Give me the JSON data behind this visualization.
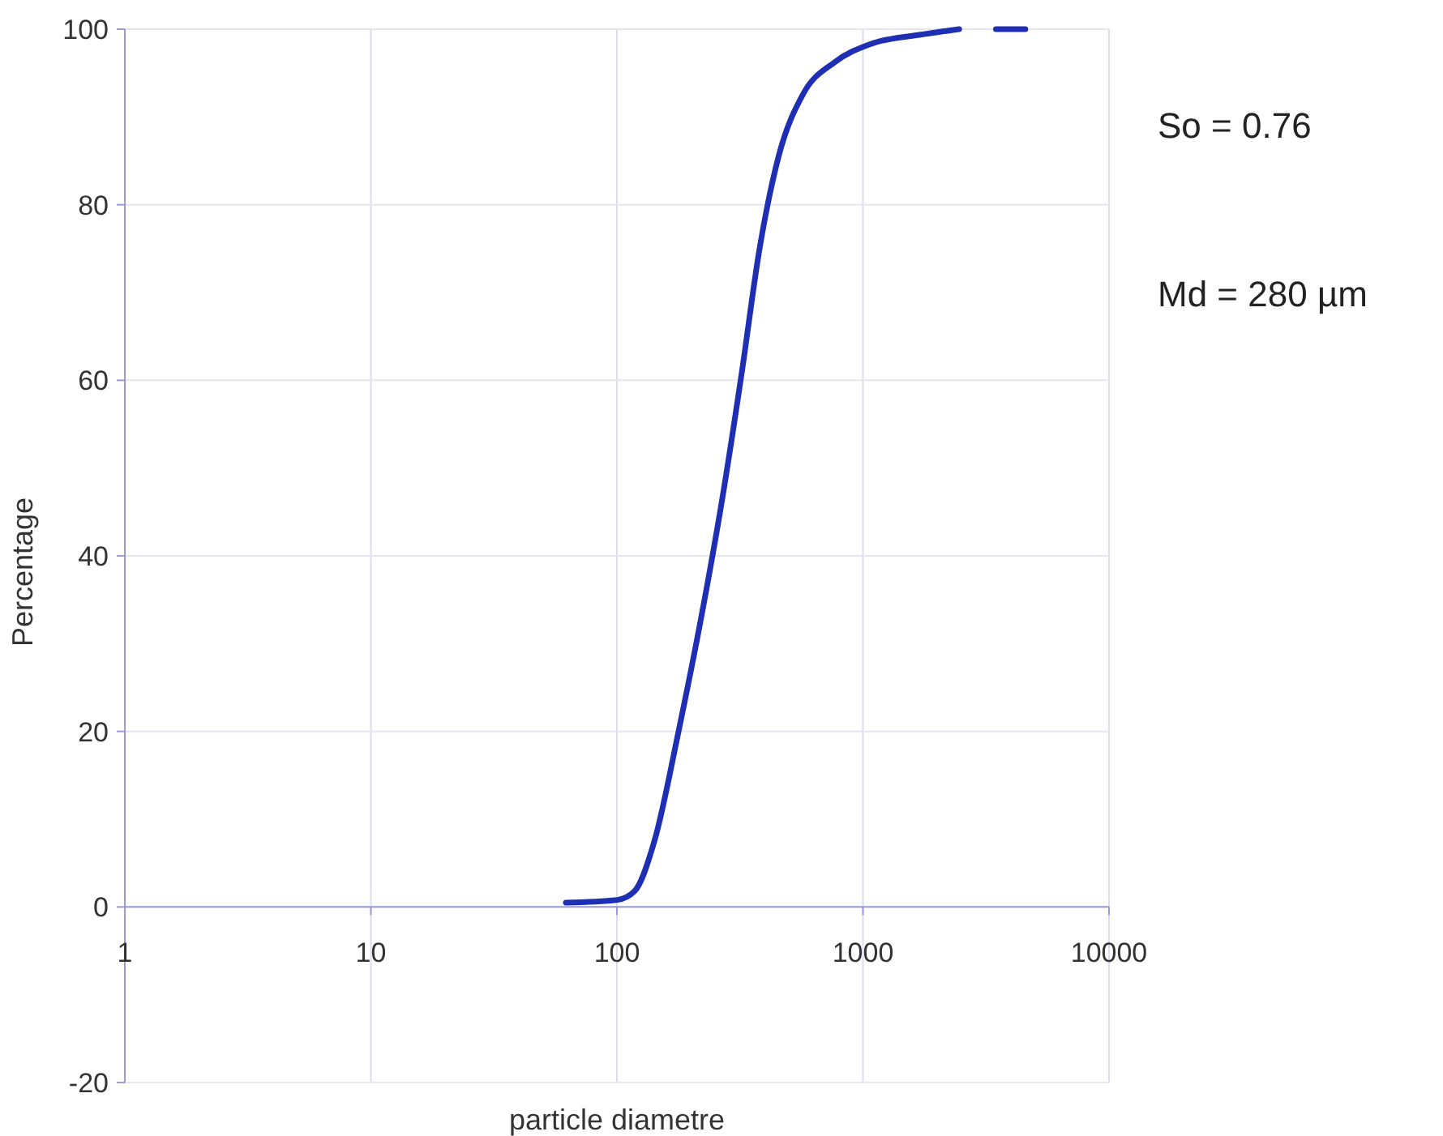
{
  "chart_data": {
    "type": "line",
    "xlabel": "particle diametre",
    "ylabel": "Percentage",
    "log": "x",
    "xlim": [
      1,
      10000
    ],
    "xticks": [
      1,
      10,
      100,
      1000,
      10000
    ],
    "ylim": [
      -20,
      100
    ],
    "yticks": [
      -20,
      0,
      20,
      40,
      60,
      80,
      100
    ],
    "grid": true,
    "series": [
      {
        "color": "#1f2fb4",
        "x": [
          62,
          100,
          118,
          142,
          178,
          227,
          268,
          321,
          380,
          455,
          571,
          764,
          1070,
          1740,
          2460,
          3000,
          3470,
          4570
        ],
        "values": [
          0.5,
          0.8,
          1.8,
          7.5,
          20,
          35,
          46.5,
          60.7,
          75,
          85.6,
          92.6,
          96.2,
          98.3,
          99.4,
          100,
          null,
          100,
          100
        ]
      }
    ],
    "annotations": [
      "So = 0.76",
      "Md = 280 µm"
    ]
  }
}
